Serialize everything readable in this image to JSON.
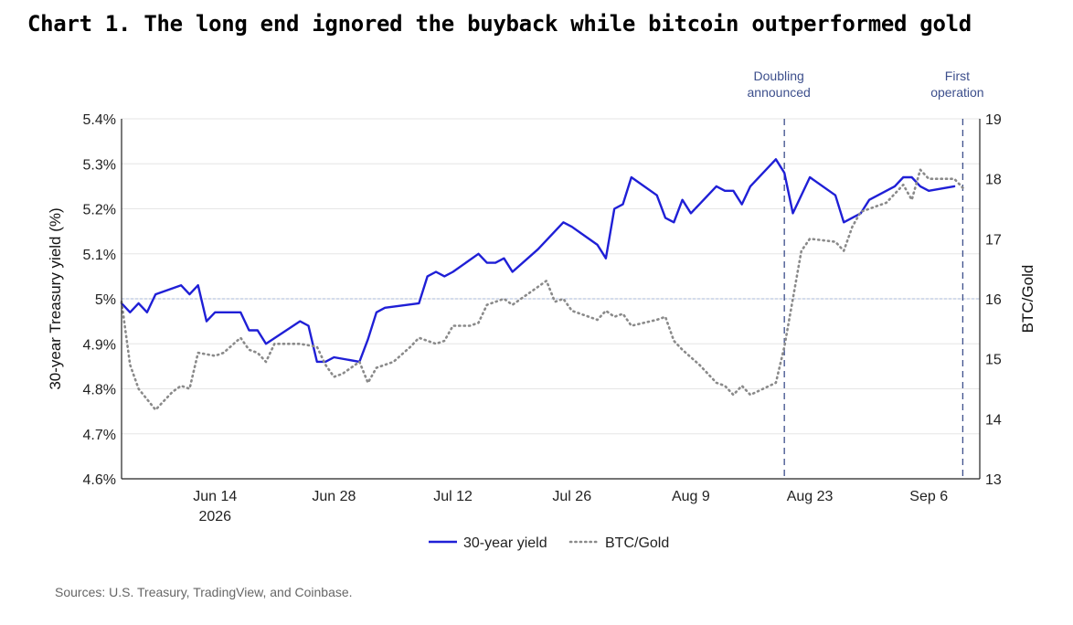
{
  "title": "Chart 1. The long end ignored the buyback while bitcoin outperformed gold",
  "source": "Sources: U.S. Treasury, TradingView, and Coinbase.",
  "colors": {
    "yield": "#1f1fd6",
    "btc_gold": "#8a8a8a",
    "reference": "#aab8d8",
    "annotation": "#3d4f8c",
    "grid": "#e6e6e6"
  },
  "chart_data": {
    "type": "line",
    "title": "Chart 1. The long end ignored the buyback while bitcoin outperformed gold",
    "xlabel": "",
    "ylabel": "30-year Treasury yield (%)",
    "y2label": "BTC/Gold",
    "xlim": [
      "2026-06-03",
      "2026-09-12"
    ],
    "ylim": [
      4.6,
      5.4
    ],
    "y2lim": [
      13,
      19
    ],
    "grid": true,
    "legend_position": "bottom-center",
    "x_ticks": [
      {
        "date": "2026-06-14",
        "label": "Jun 14",
        "sublabel": "2026"
      },
      {
        "date": "2026-06-28",
        "label": "Jun 28",
        "sublabel": ""
      },
      {
        "date": "2026-07-12",
        "label": "Jul 12",
        "sublabel": ""
      },
      {
        "date": "2026-07-26",
        "label": "Jul 26",
        "sublabel": ""
      },
      {
        "date": "2026-08-09",
        "label": "Aug 9",
        "sublabel": ""
      },
      {
        "date": "2026-08-23",
        "label": "Aug 23",
        "sublabel": ""
      },
      {
        "date": "2026-09-06",
        "label": "Sep 6",
        "sublabel": ""
      }
    ],
    "y_ticks": [
      {
        "value": 5.4,
        "label": "5.4%"
      },
      {
        "value": 5.3,
        "label": "5.3%"
      },
      {
        "value": 5.2,
        "label": "5.2%"
      },
      {
        "value": 5.1,
        "label": "5.1%"
      },
      {
        "value": 5.0,
        "label": "5%"
      },
      {
        "value": 4.9,
        "label": "4.9%"
      },
      {
        "value": 4.8,
        "label": "4.8%"
      },
      {
        "value": 4.7,
        "label": "4.7%"
      },
      {
        "value": 4.6,
        "label": "4.6%"
      }
    ],
    "y2_ticks": [
      {
        "value": 19,
        "label": "19"
      },
      {
        "value": 18,
        "label": "18"
      },
      {
        "value": 17,
        "label": "17"
      },
      {
        "value": 16,
        "label": "16"
      },
      {
        "value": 15,
        "label": "15"
      },
      {
        "value": 14,
        "label": "14"
      },
      {
        "value": 13,
        "label": "13"
      }
    ],
    "reference_line": {
      "axis": "left",
      "value": 5.0
    },
    "annotations": [
      {
        "date": "2026-08-20",
        "lines": [
          "Doubling",
          "announced"
        ]
      },
      {
        "date": "2026-09-10",
        "lines": [
          "First",
          "operation"
        ]
      }
    ],
    "series": [
      {
        "name": "30-year yield",
        "axis": "left",
        "style": "solid",
        "points": [
          [
            "2026-06-03",
            4.99
          ],
          [
            "2026-06-04",
            4.97
          ],
          [
            "2026-06-05",
            4.99
          ],
          [
            "2026-06-06",
            4.97
          ],
          [
            "2026-06-07",
            5.01
          ],
          [
            "2026-06-10",
            5.03
          ],
          [
            "2026-06-11",
            5.01
          ],
          [
            "2026-06-12",
            5.03
          ],
          [
            "2026-06-13",
            4.95
          ],
          [
            "2026-06-14",
            4.97
          ],
          [
            "2026-06-17",
            4.97
          ],
          [
            "2026-06-18",
            4.93
          ],
          [
            "2026-06-19",
            4.93
          ],
          [
            "2026-06-20",
            4.9
          ],
          [
            "2026-06-24",
            4.95
          ],
          [
            "2026-06-25",
            4.94
          ],
          [
            "2026-06-26",
            4.86
          ],
          [
            "2026-06-27",
            4.86
          ],
          [
            "2026-06-28",
            4.87
          ],
          [
            "2026-07-01",
            4.86
          ],
          [
            "2026-07-02",
            4.91
          ],
          [
            "2026-07-03",
            4.97
          ],
          [
            "2026-07-04",
            4.98
          ],
          [
            "2026-07-08",
            4.99
          ],
          [
            "2026-07-09",
            5.05
          ],
          [
            "2026-07-10",
            5.06
          ],
          [
            "2026-07-11",
            5.05
          ],
          [
            "2026-07-12",
            5.06
          ],
          [
            "2026-07-15",
            5.1
          ],
          [
            "2026-07-16",
            5.08
          ],
          [
            "2026-07-17",
            5.08
          ],
          [
            "2026-07-18",
            5.09
          ],
          [
            "2026-07-19",
            5.06
          ],
          [
            "2026-07-22",
            5.11
          ],
          [
            "2026-07-25",
            5.17
          ],
          [
            "2026-07-26",
            5.16
          ],
          [
            "2026-07-29",
            5.12
          ],
          [
            "2026-07-30",
            5.09
          ],
          [
            "2026-07-31",
            5.2
          ],
          [
            "2026-08-01",
            5.21
          ],
          [
            "2026-08-02",
            5.27
          ],
          [
            "2026-08-05",
            5.23
          ],
          [
            "2026-08-06",
            5.18
          ],
          [
            "2026-08-07",
            5.17
          ],
          [
            "2026-08-08",
            5.22
          ],
          [
            "2026-08-09",
            5.19
          ],
          [
            "2026-08-12",
            5.25
          ],
          [
            "2026-08-13",
            5.24
          ],
          [
            "2026-08-14",
            5.24
          ],
          [
            "2026-08-15",
            5.21
          ],
          [
            "2026-08-16",
            5.25
          ],
          [
            "2026-08-19",
            5.31
          ],
          [
            "2026-08-20",
            5.28
          ],
          [
            "2026-08-21",
            5.19
          ],
          [
            "2026-08-23",
            5.27
          ],
          [
            "2026-08-26",
            5.23
          ],
          [
            "2026-08-27",
            5.17
          ],
          [
            "2026-08-29",
            5.19
          ],
          [
            "2026-08-30",
            5.22
          ],
          [
            "2026-09-02",
            5.25
          ],
          [
            "2026-09-03",
            5.27
          ],
          [
            "2026-09-04",
            5.27
          ],
          [
            "2026-09-05",
            5.25
          ],
          [
            "2026-09-06",
            5.24
          ],
          [
            "2026-09-09",
            5.25
          ]
        ]
      },
      {
        "name": "BTC/Gold",
        "axis": "right",
        "style": "dotted",
        "points": [
          [
            "2026-06-03",
            15.95
          ],
          [
            "2026-06-04",
            14.9
          ],
          [
            "2026-06-05",
            14.5
          ],
          [
            "2026-06-07",
            14.15
          ],
          [
            "2026-06-08",
            14.3
          ],
          [
            "2026-06-09",
            14.45
          ],
          [
            "2026-06-10",
            14.55
          ],
          [
            "2026-06-11",
            14.5
          ],
          [
            "2026-06-12",
            15.1
          ],
          [
            "2026-06-14",
            15.05
          ],
          [
            "2026-06-15",
            15.1
          ],
          [
            "2026-06-17",
            15.35
          ],
          [
            "2026-06-18",
            15.15
          ],
          [
            "2026-06-19",
            15.1
          ],
          [
            "2026-06-20",
            14.95
          ],
          [
            "2026-06-21",
            15.25
          ],
          [
            "2026-06-24",
            15.25
          ],
          [
            "2026-06-26",
            15.2
          ],
          [
            "2026-06-27",
            14.9
          ],
          [
            "2026-06-28",
            14.7
          ],
          [
            "2026-06-29",
            14.75
          ],
          [
            "2026-07-01",
            14.95
          ],
          [
            "2026-07-02",
            14.6
          ],
          [
            "2026-07-03",
            14.85
          ],
          [
            "2026-07-05",
            14.95
          ],
          [
            "2026-07-07",
            15.2
          ],
          [
            "2026-07-08",
            15.35
          ],
          [
            "2026-07-09",
            15.3
          ],
          [
            "2026-07-10",
            15.25
          ],
          [
            "2026-07-11",
            15.3
          ],
          [
            "2026-07-12",
            15.55
          ],
          [
            "2026-07-14",
            15.55
          ],
          [
            "2026-07-15",
            15.6
          ],
          [
            "2026-07-16",
            15.9
          ],
          [
            "2026-07-17",
            15.95
          ],
          [
            "2026-07-18",
            16.0
          ],
          [
            "2026-07-19",
            15.9
          ],
          [
            "2026-07-22",
            16.2
          ],
          [
            "2026-07-23",
            16.3
          ],
          [
            "2026-07-24",
            15.95
          ],
          [
            "2026-07-25",
            16.0
          ],
          [
            "2026-07-26",
            15.8
          ],
          [
            "2026-07-29",
            15.65
          ],
          [
            "2026-07-30",
            15.8
          ],
          [
            "2026-07-31",
            15.7
          ],
          [
            "2026-08-01",
            15.75
          ],
          [
            "2026-08-02",
            15.55
          ],
          [
            "2026-08-05",
            15.65
          ],
          [
            "2026-08-06",
            15.7
          ],
          [
            "2026-08-07",
            15.3
          ],
          [
            "2026-08-08",
            15.15
          ],
          [
            "2026-08-10",
            14.9
          ],
          [
            "2026-08-12",
            14.6
          ],
          [
            "2026-08-13",
            14.55
          ],
          [
            "2026-08-14",
            14.4
          ],
          [
            "2026-08-15",
            14.55
          ],
          [
            "2026-08-16",
            14.4
          ],
          [
            "2026-08-19",
            14.6
          ],
          [
            "2026-08-20",
            15.2
          ],
          [
            "2026-08-21",
            16.0
          ],
          [
            "2026-08-22",
            16.8
          ],
          [
            "2026-08-23",
            17.0
          ],
          [
            "2026-08-26",
            16.95
          ],
          [
            "2026-08-27",
            16.8
          ],
          [
            "2026-08-28",
            17.2
          ],
          [
            "2026-08-29",
            17.45
          ],
          [
            "2026-09-01",
            17.6
          ],
          [
            "2026-09-02",
            17.75
          ],
          [
            "2026-09-03",
            17.9
          ],
          [
            "2026-09-04",
            17.65
          ],
          [
            "2026-09-05",
            18.15
          ],
          [
            "2026-09-06",
            18.0
          ],
          [
            "2026-09-09",
            18.0
          ],
          [
            "2026-09-10",
            17.85
          ]
        ]
      }
    ]
  }
}
